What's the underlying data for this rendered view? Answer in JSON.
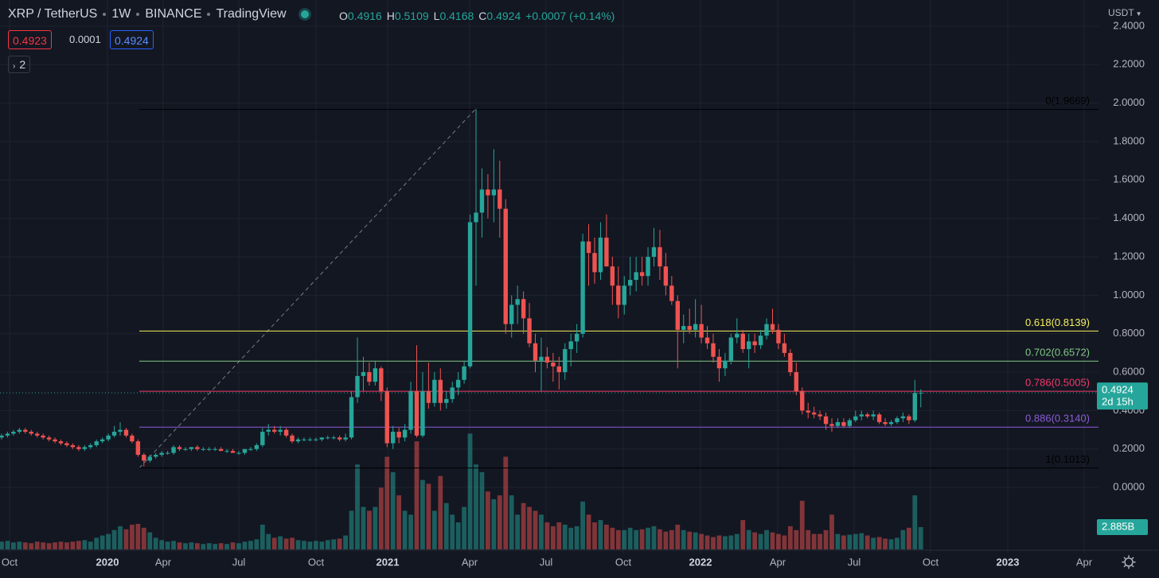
{
  "chart_data": {
    "type": "candlestick",
    "symbol": "XRP / TetherUS",
    "interval": "1W",
    "exchange": "BINANCE",
    "platform": "TradingView",
    "ohlc_letters": [
      "O",
      "H",
      "L",
      "C"
    ],
    "change": "+0.0007 (+0.14%)",
    "sell_price": "0.4923",
    "spread": "0.0001",
    "indicator_count": "2",
    "currency": "USDT",
    "countdown": "2d 15h",
    "volume_label": "2.885B",
    "up_color": "#26a69a",
    "down_color": "#ef5350",
    "ylim": [
      -0.322,
      2.536
    ],
    "yticks": [
      {
        "value": 0,
        "label": "0.0000"
      },
      {
        "value": 0.2,
        "label": "0.2000"
      },
      {
        "value": 0.4,
        "label": "0.4000"
      },
      {
        "value": 0.6,
        "label": "0.6000"
      },
      {
        "value": 0.8,
        "label": "0.8000"
      },
      {
        "value": 1,
        "label": "1.0000"
      },
      {
        "value": 1.2,
        "label": "1.2000"
      },
      {
        "value": 1.4,
        "label": "1.4000"
      },
      {
        "value": 1.6,
        "label": "1.6000"
      },
      {
        "value": 1.8,
        "label": "1.8000"
      },
      {
        "value": 2,
        "label": "2.0000"
      },
      {
        "value": 2.2,
        "label": "2.2000"
      },
      {
        "value": 2.4,
        "label": "2.4000"
      }
    ],
    "xaxis_labels": [
      "Oct",
      "2020",
      "Apr",
      "Jul",
      "Oct",
      "2021",
      "Apr",
      "Jul",
      "Oct",
      "2022",
      "Apr",
      "Jul",
      "Oct",
      "2023",
      "Apr"
    ],
    "fib_levels": [
      {
        "label": "0(1.9669)",
        "price": 1.9669,
        "color": "#000000"
      },
      {
        "label": "0.618(0.8139)",
        "price": 0.8139,
        "color": "#f5f05a"
      },
      {
        "label": "0.702(0.6572)",
        "price": 0.6572,
        "color": "#81c784"
      },
      {
        "label": "0.786(0.5005)",
        "price": 0.5005,
        "color": "#f23a6a"
      },
      {
        "label": "0.886(0.3140)",
        "price": 0.314,
        "color": "#8c5cd6"
      },
      {
        "label": "1(0.1013)",
        "price": 0.1013,
        "color": "#000000"
      }
    ],
    "ohlc": [
      [
        0.26,
        0.28,
        0.25,
        0.27
      ],
      [
        0.27,
        0.29,
        0.26,
        0.28
      ],
      [
        0.28,
        0.3,
        0.27,
        0.29
      ],
      [
        0.29,
        0.31,
        0.28,
        0.3
      ],
      [
        0.3,
        0.31,
        0.28,
        0.29
      ],
      [
        0.29,
        0.3,
        0.27,
        0.28
      ],
      [
        0.28,
        0.29,
        0.26,
        0.27
      ],
      [
        0.27,
        0.28,
        0.25,
        0.26
      ],
      [
        0.26,
        0.27,
        0.24,
        0.25
      ],
      [
        0.25,
        0.26,
        0.23,
        0.24
      ],
      [
        0.24,
        0.25,
        0.22,
        0.23
      ],
      [
        0.23,
        0.24,
        0.21,
        0.22
      ],
      [
        0.22,
        0.23,
        0.2,
        0.21
      ],
      [
        0.21,
        0.22,
        0.19,
        0.2
      ],
      [
        0.2,
        0.22,
        0.19,
        0.21
      ],
      [
        0.21,
        0.23,
        0.2,
        0.22
      ],
      [
        0.22,
        0.25,
        0.21,
        0.24
      ],
      [
        0.24,
        0.26,
        0.23,
        0.25
      ],
      [
        0.25,
        0.28,
        0.24,
        0.27
      ],
      [
        0.27,
        0.32,
        0.26,
        0.29
      ],
      [
        0.29,
        0.34,
        0.27,
        0.3
      ],
      [
        0.3,
        0.31,
        0.26,
        0.27
      ],
      [
        0.27,
        0.28,
        0.23,
        0.24
      ],
      [
        0.24,
        0.25,
        0.16,
        0.17
      ],
      [
        0.17,
        0.18,
        0.11,
        0.14
      ],
      [
        0.14,
        0.17,
        0.13,
        0.16
      ],
      [
        0.16,
        0.18,
        0.15,
        0.17
      ],
      [
        0.17,
        0.19,
        0.16,
        0.18
      ],
      [
        0.18,
        0.19,
        0.17,
        0.18
      ],
      [
        0.18,
        0.22,
        0.17,
        0.21
      ],
      [
        0.21,
        0.22,
        0.19,
        0.2
      ],
      [
        0.2,
        0.21,
        0.19,
        0.2
      ],
      [
        0.2,
        0.21,
        0.19,
        0.21
      ],
      [
        0.21,
        0.22,
        0.19,
        0.2
      ],
      [
        0.2,
        0.21,
        0.19,
        0.2
      ],
      [
        0.2,
        0.21,
        0.19,
        0.2
      ],
      [
        0.2,
        0.21,
        0.19,
        0.2
      ],
      [
        0.2,
        0.21,
        0.19,
        0.19
      ],
      [
        0.19,
        0.2,
        0.18,
        0.19
      ],
      [
        0.19,
        0.2,
        0.18,
        0.18
      ],
      [
        0.18,
        0.19,
        0.17,
        0.18
      ],
      [
        0.18,
        0.2,
        0.17,
        0.2
      ],
      [
        0.2,
        0.21,
        0.19,
        0.2
      ],
      [
        0.2,
        0.23,
        0.19,
        0.22
      ],
      [
        0.22,
        0.31,
        0.21,
        0.29
      ],
      [
        0.29,
        0.33,
        0.27,
        0.3
      ],
      [
        0.3,
        0.32,
        0.28,
        0.29
      ],
      [
        0.29,
        0.32,
        0.27,
        0.3
      ],
      [
        0.3,
        0.31,
        0.26,
        0.27
      ],
      [
        0.27,
        0.28,
        0.23,
        0.24
      ],
      [
        0.24,
        0.26,
        0.23,
        0.25
      ],
      [
        0.25,
        0.26,
        0.24,
        0.25
      ],
      [
        0.25,
        0.26,
        0.24,
        0.25
      ],
      [
        0.25,
        0.26,
        0.24,
        0.25
      ],
      [
        0.25,
        0.26,
        0.24,
        0.26
      ],
      [
        0.26,
        0.27,
        0.25,
        0.26
      ],
      [
        0.26,
        0.27,
        0.25,
        0.26
      ],
      [
        0.26,
        0.27,
        0.24,
        0.25
      ],
      [
        0.25,
        0.28,
        0.24,
        0.26
      ],
      [
        0.26,
        0.5,
        0.25,
        0.47
      ],
      [
        0.47,
        0.78,
        0.44,
        0.58
      ],
      [
        0.58,
        0.68,
        0.5,
        0.6
      ],
      [
        0.6,
        0.65,
        0.53,
        0.55
      ],
      [
        0.55,
        0.66,
        0.53,
        0.62
      ],
      [
        0.62,
        0.63,
        0.45,
        0.5
      ],
      [
        0.5,
        0.52,
        0.21,
        0.23
      ],
      [
        0.23,
        0.32,
        0.2,
        0.29
      ],
      [
        0.29,
        0.31,
        0.23,
        0.26
      ],
      [
        0.26,
        0.33,
        0.24,
        0.3
      ],
      [
        0.3,
        0.55,
        0.28,
        0.5
      ],
      [
        0.5,
        0.74,
        0.26,
        0.27
      ],
      [
        0.27,
        0.6,
        0.26,
        0.5
      ],
      [
        0.5,
        0.65,
        0.41,
        0.44
      ],
      [
        0.44,
        0.6,
        0.42,
        0.56
      ],
      [
        0.56,
        0.62,
        0.4,
        0.44
      ],
      [
        0.44,
        0.5,
        0.41,
        0.46
      ],
      [
        0.46,
        0.55,
        0.44,
        0.52
      ],
      [
        0.52,
        0.6,
        0.48,
        0.56
      ],
      [
        0.56,
        0.66,
        0.54,
        0.63
      ],
      [
        0.63,
        1.42,
        0.62,
        1.38
      ],
      [
        1.38,
        1.97,
        1.05,
        1.43
      ],
      [
        1.43,
        1.66,
        1.3,
        1.55
      ],
      [
        1.55,
        1.63,
        1.4,
        1.52
      ],
      [
        1.52,
        1.76,
        1.38,
        1.55
      ],
      [
        1.55,
        1.7,
        1.3,
        1.45
      ],
      [
        1.45,
        1.5,
        0.8,
        0.85
      ],
      [
        0.85,
        1.0,
        0.78,
        0.95
      ],
      [
        0.95,
        1.05,
        0.85,
        0.98
      ],
      [
        0.98,
        1.02,
        0.8,
        0.88
      ],
      [
        0.88,
        0.96,
        0.73,
        0.75
      ],
      [
        0.75,
        0.8,
        0.6,
        0.66
      ],
      [
        0.66,
        0.78,
        0.5,
        0.68
      ],
      [
        0.68,
        0.73,
        0.62,
        0.65
      ],
      [
        0.65,
        0.7,
        0.55,
        0.63
      ],
      [
        0.63,
        0.68,
        0.51,
        0.6
      ],
      [
        0.6,
        0.75,
        0.56,
        0.72
      ],
      [
        0.72,
        0.8,
        0.63,
        0.76
      ],
      [
        0.76,
        0.85,
        0.7,
        0.8
      ],
      [
        0.8,
        1.32,
        0.78,
        1.28
      ],
      [
        1.28,
        1.37,
        1.05,
        1.22
      ],
      [
        1.22,
        1.3,
        1.06,
        1.12
      ],
      [
        1.12,
        1.38,
        1.08,
        1.3
      ],
      [
        1.3,
        1.42,
        1.15,
        1.15
      ],
      [
        1.15,
        1.2,
        0.95,
        1.05
      ],
      [
        1.05,
        1.15,
        0.88,
        0.95
      ],
      [
        0.95,
        1.1,
        0.9,
        1.05
      ],
      [
        1.05,
        1.2,
        1.0,
        1.08
      ],
      [
        1.08,
        1.2,
        1.02,
        1.12
      ],
      [
        1.12,
        1.2,
        1.05,
        1.1
      ],
      [
        1.1,
        1.25,
        1.05,
        1.2
      ],
      [
        1.2,
        1.35,
        1.15,
        1.25
      ],
      [
        1.25,
        1.34,
        1.08,
        1.15
      ],
      [
        1.15,
        1.22,
        1.0,
        1.05
      ],
      [
        1.05,
        1.1,
        0.95,
        0.97
      ],
      [
        0.97,
        1.0,
        0.62,
        0.82
      ],
      [
        0.82,
        0.9,
        0.75,
        0.84
      ],
      [
        0.84,
        0.93,
        0.8,
        0.82
      ],
      [
        0.82,
        0.98,
        0.78,
        0.85
      ],
      [
        0.85,
        0.95,
        0.75,
        0.78
      ],
      [
        0.78,
        0.84,
        0.72,
        0.75
      ],
      [
        0.75,
        0.8,
        0.65,
        0.68
      ],
      [
        0.68,
        0.72,
        0.55,
        0.62
      ],
      [
        0.62,
        0.7,
        0.58,
        0.66
      ],
      [
        0.66,
        0.8,
        0.64,
        0.78
      ],
      [
        0.78,
        0.88,
        0.75,
        0.8
      ],
      [
        0.8,
        0.82,
        0.7,
        0.72
      ],
      [
        0.72,
        0.8,
        0.62,
        0.76
      ],
      [
        0.76,
        0.8,
        0.7,
        0.74
      ],
      [
        0.74,
        0.82,
        0.72,
        0.79
      ],
      [
        0.79,
        0.88,
        0.77,
        0.85
      ],
      [
        0.85,
        0.93,
        0.8,
        0.82
      ],
      [
        0.82,
        0.85,
        0.72,
        0.75
      ],
      [
        0.75,
        0.8,
        0.68,
        0.7
      ],
      [
        0.7,
        0.72,
        0.58,
        0.6
      ],
      [
        0.6,
        0.65,
        0.48,
        0.5
      ],
      [
        0.5,
        0.52,
        0.38,
        0.4
      ],
      [
        0.4,
        0.44,
        0.36,
        0.39
      ],
      [
        0.39,
        0.42,
        0.36,
        0.38
      ],
      [
        0.38,
        0.4,
        0.35,
        0.37
      ],
      [
        0.37,
        0.39,
        0.3,
        0.33
      ],
      [
        0.33,
        0.36,
        0.29,
        0.32
      ],
      [
        0.32,
        0.36,
        0.31,
        0.34
      ],
      [
        0.34,
        0.36,
        0.31,
        0.32
      ],
      [
        0.32,
        0.36,
        0.31,
        0.35
      ],
      [
        0.35,
        0.4,
        0.34,
        0.37
      ],
      [
        0.37,
        0.4,
        0.35,
        0.38
      ],
      [
        0.38,
        0.39,
        0.36,
        0.37
      ],
      [
        0.37,
        0.4,
        0.35,
        0.38
      ],
      [
        0.38,
        0.39,
        0.33,
        0.34
      ],
      [
        0.34,
        0.36,
        0.32,
        0.33
      ],
      [
        0.33,
        0.35,
        0.32,
        0.34
      ],
      [
        0.34,
        0.37,
        0.33,
        0.36
      ],
      [
        0.36,
        0.39,
        0.34,
        0.37
      ],
      [
        0.37,
        0.38,
        0.33,
        0.35
      ],
      [
        0.35,
        0.56,
        0.34,
        0.4916
      ],
      [
        0.4916,
        0.5109,
        0.4168,
        0.4924
      ]
    ],
    "volume": [
      1.0,
      1.1,
      0.9,
      1.0,
      0.9,
      0.8,
      1.0,
      0.9,
      0.8,
      0.9,
      1.0,
      0.9,
      1.0,
      1.1,
      1.2,
      1.0,
      1.5,
      1.8,
      2.0,
      2.5,
      3.0,
      2.6,
      3.2,
      3.3,
      2.8,
      2.2,
      1.5,
      1.2,
      1.0,
      1.1,
      0.9,
      0.8,
      0.9,
      0.8,
      0.7,
      0.8,
      0.7,
      0.8,
      0.7,
      0.9,
      0.8,
      1.0,
      1.1,
      1.3,
      3.2,
      2.0,
      1.5,
      1.7,
      1.4,
      1.5,
      1.2,
      1.1,
      1.0,
      1.1,
      1.0,
      1.2,
      1.3,
      1.4,
      1.8,
      5.0,
      11.0,
      5.5,
      5.0,
      5.5,
      8.0,
      12.0,
      10.0,
      7.0,
      5.0,
      4.5,
      14.0,
      9.0,
      8.5,
      5.0,
      9.5,
      6.0,
      4.5,
      3.5,
      5.5,
      15.0,
      11.0,
      10.0,
      7.5,
      6.5,
      7.0,
      12.0,
      7.0,
      4.5,
      6.0,
      5.5,
      5.0,
      4.5,
      3.5,
      3.0,
      3.5,
      3.2,
      2.8,
      3.0,
      6.2,
      4.5,
      3.5,
      3.8,
      3.2,
      2.8,
      2.5,
      2.5,
      2.8,
      2.5,
      2.6,
      2.8,
      3.0,
      2.6,
      2.3,
      2.5,
      3.2,
      2.5,
      2.3,
      2.2,
      2.0,
      1.8,
      1.6,
      1.8,
      1.7,
      1.8,
      2.0,
      3.8,
      2.5,
      2.2,
      2.0,
      2.5,
      2.2,
      2.0,
      1.8,
      3.0,
      2.5,
      6.3,
      2.5,
      2.0,
      2.0,
      2.5,
      4.5,
      2.0,
      1.8,
      1.9,
      2.0,
      2.1,
      1.8,
      1.5,
      1.6,
      1.4,
      1.3,
      1.5,
      2.5,
      2.8,
      7.0,
      2.885
    ]
  }
}
